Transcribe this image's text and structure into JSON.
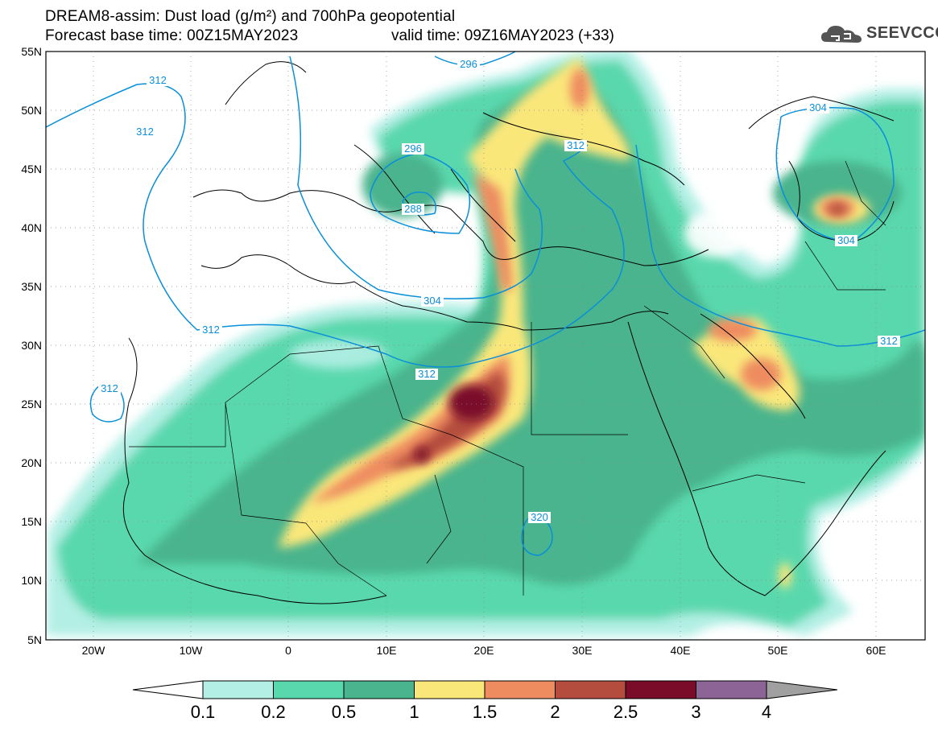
{
  "title": {
    "line1": "DREAM8-assim: Dust load (g/m²) and 700hPa geopotential",
    "line2a": "Forecast base time: 00Z15MAY2023",
    "line2b": "valid time: 09Z16MAY2023 (+33)"
  },
  "logo": {
    "text": "SEEVCCC",
    "icon": "cloud-logo-icon"
  },
  "axes": {
    "lat_labels": [
      "55N",
      "50N",
      "45N",
      "40N",
      "35N",
      "30N",
      "25N",
      "20N",
      "15N",
      "10N",
      "5N"
    ],
    "lon_labels": [
      "20W",
      "10W",
      "0",
      "10E",
      "20E",
      "30E",
      "40E",
      "50E",
      "60E"
    ]
  },
  "contour_labels": [
    "312",
    "312",
    "296",
    "296",
    "312",
    "288",
    "304",
    "304",
    "312",
    "312",
    "312",
    "304",
    "312",
    "320"
  ],
  "colorbar": {
    "ticks": [
      "0.1",
      "0.2",
      "0.5",
      "1",
      "1.5",
      "2",
      "2.5",
      "3",
      "4"
    ],
    "colors": [
      "#ffffff",
      "#b3efe5",
      "#5ad8ad",
      "#49b48d",
      "#fae77a",
      "#ee8c60",
      "#b44d3e",
      "#7a0c2a",
      "#8c6496",
      "#a0a0a0"
    ]
  }
}
